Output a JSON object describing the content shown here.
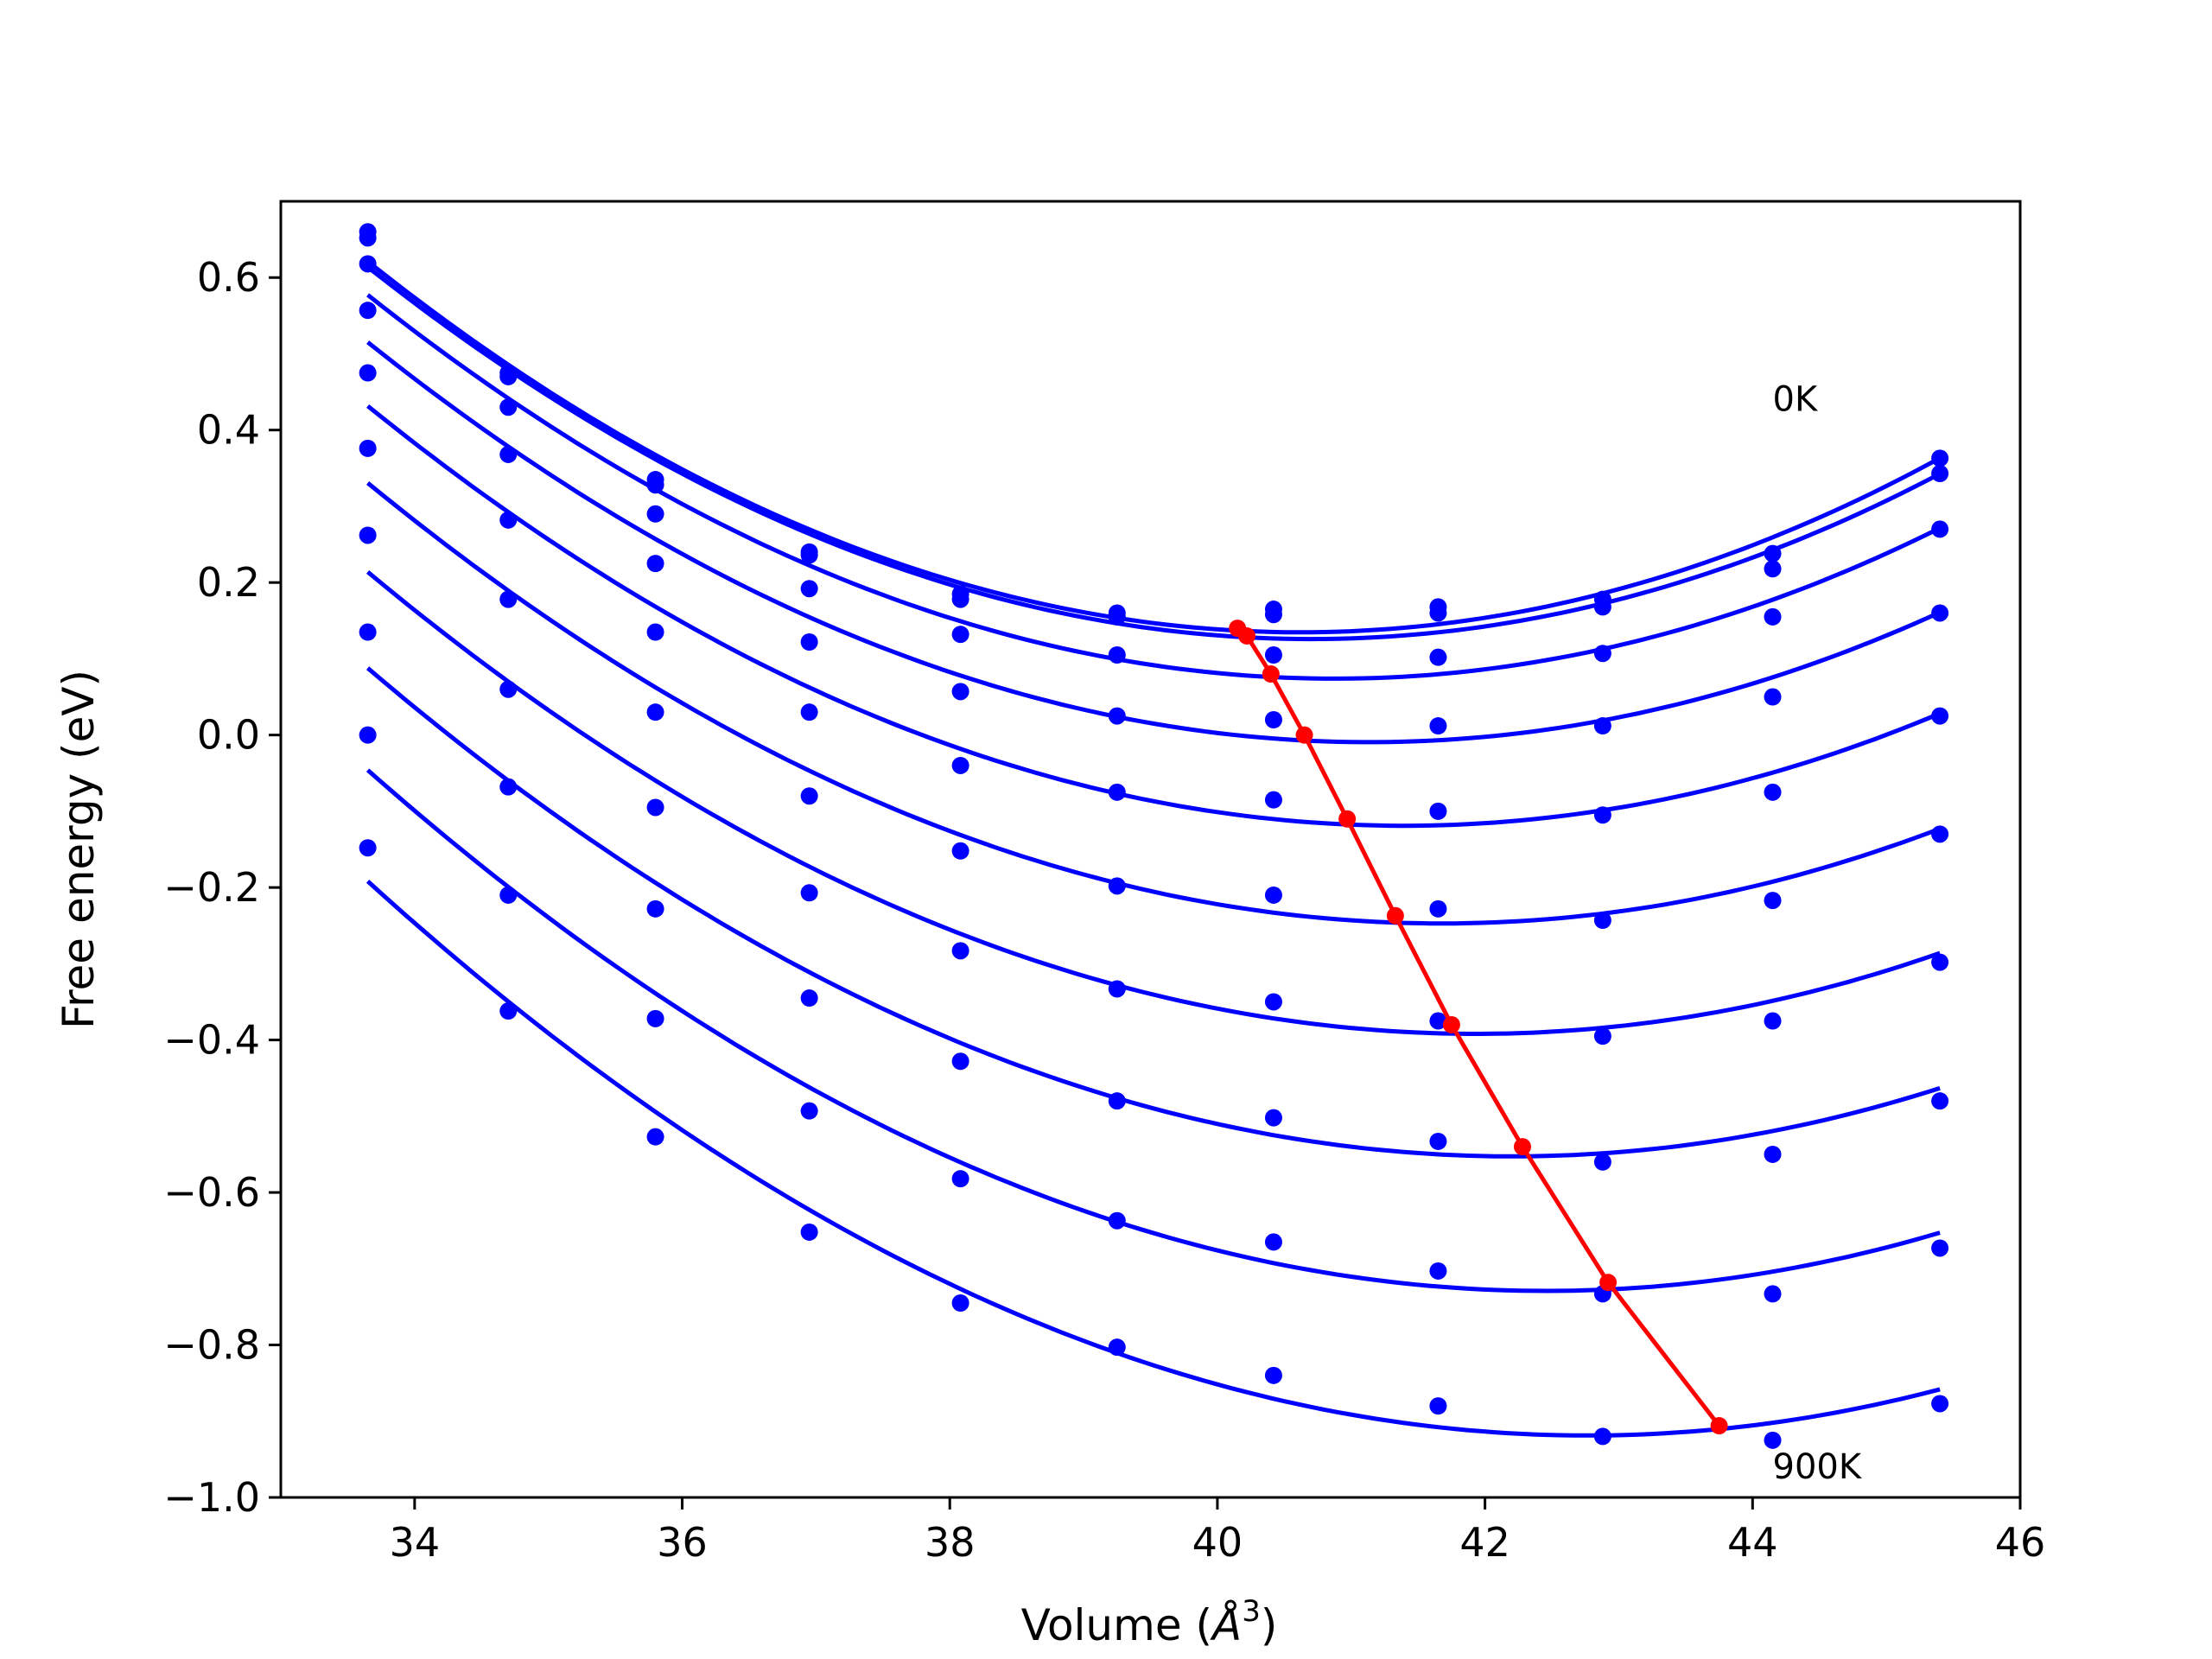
{
  "chart_data": {
    "type": "scatter",
    "xlabel": "Volume (",
    "xlabel_symbol": "Å",
    "xlabel_power": "3",
    "xlabel_close": ")",
    "ylabel": "Free energy (eV)",
    "xlim": [
      33.0,
      46.0
    ],
    "ylim": [
      -1.0,
      0.7
    ],
    "xticks": [
      "34",
      "36",
      "38",
      "40",
      "42",
      "44",
      "46"
    ],
    "xtick_values": [
      34,
      36,
      38,
      40,
      42,
      44,
      46
    ],
    "yticks": [
      "0.6",
      "0.4",
      "0.2",
      "0.0",
      "−0.2",
      "−0.4",
      "−0.6",
      "−0.8",
      "−1.0"
    ],
    "ytick_values": [
      0.6,
      0.4,
      0.2,
      0.0,
      -0.2,
      -0.4,
      -0.6,
      -0.8,
      -1.0
    ],
    "grid": false,
    "annotations": [
      {
        "text": "0K",
        "x": 44.15,
        "y": 0.425
      },
      {
        "text": "900K",
        "x": 44.15,
        "y": -0.975
      }
    ],
    "curve_color": "#0000ff",
    "min_path_color": "#ff0000",
    "x": [
      33.65,
      34.7,
      35.8,
      36.95,
      38.08,
      39.25,
      40.42,
      41.65,
      42.88,
      44.15,
      45.4
    ],
    "series": [
      {
        "values": [
          0.66,
          0.475,
          0.335,
          0.24,
          0.185,
          0.16,
          0.165,
          0.168,
          0.178,
          0.238,
          0.363
        ],
        "fit_min": [
          40.15,
          0.14
        ]
      },
      {
        "values": [
          0.652,
          0.47,
          0.328,
          0.236,
          0.178,
          0.155,
          0.158,
          0.16,
          0.168,
          0.218,
          0.343
        ],
        "fit_min": [
          40.22,
          0.13
        ]
      },
      {
        "values": [
          0.618,
          0.43,
          0.29,
          0.192,
          0.132,
          0.105,
          0.105,
          0.102,
          0.107,
          0.155,
          0.27
        ],
        "fit_min": [
          40.4,
          0.08
        ]
      },
      {
        "values": [
          0.557,
          0.368,
          0.225,
          0.122,
          0.057,
          0.025,
          0.02,
          0.012,
          0.012,
          0.05,
          0.16
        ],
        "fit_min": [
          40.65,
          0.0
        ]
      },
      {
        "values": [
          0.475,
          0.282,
          0.135,
          0.03,
          -0.04,
          -0.075,
          -0.085,
          -0.1,
          -0.105,
          -0.075,
          0.025
        ],
        "fit_min": [
          40.97,
          -0.11
        ]
      },
      {
        "values": [
          0.376,
          0.178,
          0.03,
          -0.08,
          -0.152,
          -0.198,
          -0.21,
          -0.228,
          -0.243,
          -0.217,
          -0.13
        ],
        "fit_min": [
          41.33,
          -0.237
        ]
      },
      {
        "values": [
          0.262,
          0.06,
          -0.095,
          -0.207,
          -0.283,
          -0.333,
          -0.35,
          -0.375,
          -0.395,
          -0.375,
          -0.298
        ],
        "fit_min": [
          41.75,
          -0.38
        ]
      },
      {
        "values": [
          0.135,
          -0.068,
          -0.228,
          -0.345,
          -0.428,
          -0.48,
          -0.502,
          -0.533,
          -0.56,
          -0.55,
          -0.48
        ],
        "fit_min": [
          42.28,
          -0.54
        ]
      },
      {
        "values": [
          0.0,
          -0.21,
          -0.372,
          -0.493,
          -0.582,
          -0.637,
          -0.665,
          -0.703,
          -0.733,
          -0.733,
          -0.673
        ],
        "fit_min": [
          42.92,
          -0.718
        ]
      },
      {
        "values": [
          -0.148,
          -0.362,
          -0.527,
          -0.652,
          -0.745,
          -0.803,
          -0.84,
          -0.88,
          -0.92,
          -0.925,
          -0.877
        ],
        "fit_min": [
          43.75,
          -0.906
        ]
      }
    ]
  }
}
